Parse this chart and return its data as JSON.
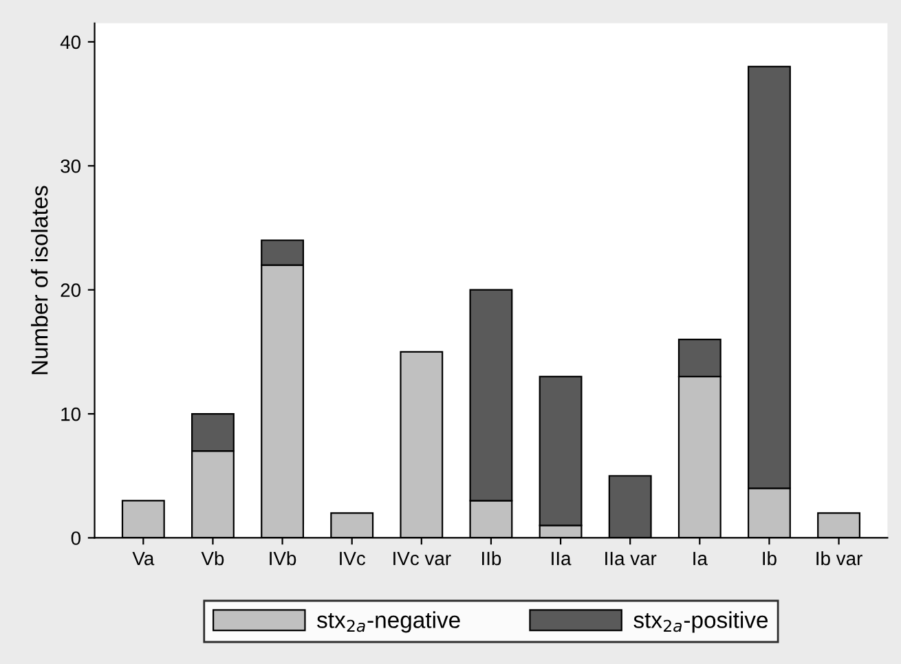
{
  "chart_data": {
    "type": "bar",
    "stacked": true,
    "ylabel": "Number of isolates",
    "categories": [
      "Va",
      "Vb",
      "IVb",
      "IVc",
      "IVc var",
      "IIb",
      "IIa",
      "IIa var",
      "Ia",
      "Ib",
      "Ib var"
    ],
    "series": [
      {
        "name": "stx$_{2a}$-negative",
        "color": "#c0c0c0",
        "values": [
          3,
          7,
          22,
          2,
          15,
          3,
          1,
          null,
          13,
          4,
          2
        ]
      },
      {
        "name": "stx$_{2a}$-positive",
        "color": "#5a5a5a",
        "values": [
          null,
          3,
          2,
          null,
          null,
          17,
          12,
          5,
          3,
          34,
          null
        ]
      }
    ],
    "ylim": [
      0,
      41.5
    ],
    "yticks": [
      0,
      10,
      20,
      30,
      40
    ],
    "grid": false,
    "legend": "bottom"
  }
}
